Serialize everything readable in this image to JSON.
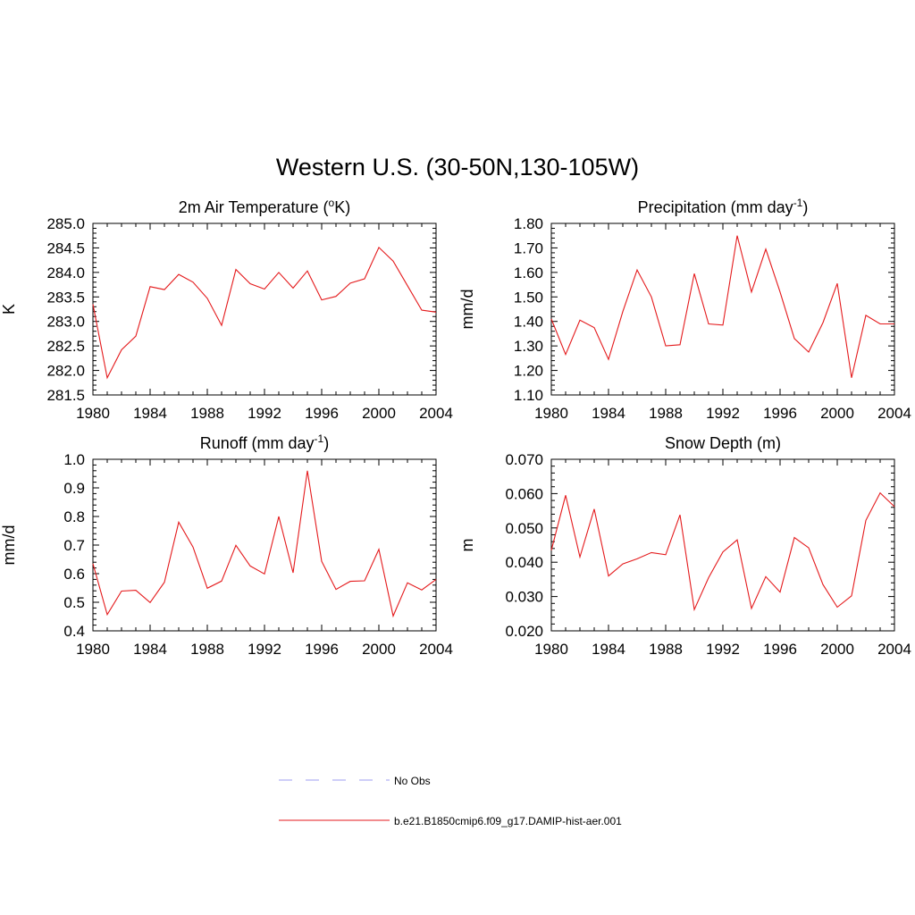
{
  "figure": {
    "title": "Western U.S. (30-50N,130-105W)"
  },
  "legend": {
    "entries": [
      {
        "label": "No Obs",
        "color": "#9c9cf0",
        "style": "dashed"
      },
      {
        "label": "b.e21.B1850cmip6.f09_g17.DAMIP-hist-aer.001",
        "color": "#e41a1c",
        "style": "solid"
      }
    ]
  },
  "chart_data": [
    {
      "type": "line",
      "title": "2m Air Temperature (",
      "title_sup": "o",
      "title_suffix": "K)",
      "ylabel": "K",
      "xlim": [
        1980,
        2004
      ],
      "ylim": [
        281.5,
        285.0
      ],
      "xticks": [
        1980,
        1984,
        1988,
        1992,
        1996,
        2000,
        2004
      ],
      "yticks": [
        "285.0",
        "284.5",
        "284.0",
        "283.5",
        "283.0",
        "282.5",
        "282.0",
        "281.5"
      ],
      "series": [
        {
          "color": "#e41a1c",
          "x": [
            1980,
            1981,
            1982,
            1983,
            1984,
            1985,
            1986,
            1987,
            1988,
            1989,
            1990,
            1991,
            1992,
            1993,
            1994,
            1995,
            1996,
            1997,
            1998,
            1999,
            2000,
            2001,
            2002,
            2003,
            2004
          ],
          "y": [
            283.35,
            281.85,
            282.42,
            282.7,
            283.71,
            283.65,
            283.96,
            283.8,
            283.47,
            282.92,
            284.06,
            283.77,
            283.66,
            284.0,
            283.68,
            284.03,
            283.44,
            283.51,
            283.78,
            283.87,
            284.51,
            284.23,
            283.73,
            283.23,
            283.19
          ]
        }
      ]
    },
    {
      "type": "line",
      "title": "Precipitation (mm day",
      "title_sup": "-1",
      "title_suffix": ")",
      "ylabel": "mm/d",
      "xlim": [
        1980,
        2004
      ],
      "ylim": [
        1.1,
        1.8
      ],
      "xticks": [
        1980,
        1984,
        1988,
        1992,
        1996,
        2000,
        2004
      ],
      "yticks": [
        "1.80",
        "1.70",
        "1.60",
        "1.50",
        "1.40",
        "1.30",
        "1.20",
        "1.10"
      ],
      "series": [
        {
          "color": "#e41a1c",
          "x": [
            1980,
            1981,
            1982,
            1983,
            1984,
            1985,
            1986,
            1987,
            1988,
            1989,
            1990,
            1991,
            1992,
            1993,
            1994,
            1995,
            1996,
            1997,
            1998,
            1999,
            2000,
            2001,
            2002,
            2003,
            2004
          ],
          "y": [
            1.41,
            1.265,
            1.405,
            1.375,
            1.245,
            1.44,
            1.61,
            1.5,
            1.3,
            1.305,
            1.595,
            1.39,
            1.385,
            1.75,
            1.52,
            1.695,
            1.52,
            1.33,
            1.275,
            1.395,
            1.555,
            1.17,
            1.425,
            1.39,
            1.39
          ]
        }
      ]
    },
    {
      "type": "line",
      "title": "Runoff (mm day",
      "title_sup": "-1",
      "title_suffix": ")",
      "ylabel": "mm/d",
      "xlim": [
        1980,
        2004
      ],
      "ylim": [
        0.4,
        1.0
      ],
      "xticks": [
        1980,
        1984,
        1988,
        1992,
        1996,
        2000,
        2004
      ],
      "yticks": [
        "1.0",
        "0.9",
        "0.8",
        "0.7",
        "0.6",
        "0.5",
        "0.4"
      ],
      "series": [
        {
          "color": "#e41a1c",
          "x": [
            1980,
            1981,
            1982,
            1983,
            1984,
            1985,
            1986,
            1987,
            1988,
            1989,
            1990,
            1991,
            1992,
            1993,
            1994,
            1995,
            1996,
            1997,
            1998,
            1999,
            2000,
            2001,
            2002,
            2003,
            2004
          ],
          "y": [
            0.635,
            0.457,
            0.539,
            0.542,
            0.499,
            0.57,
            0.78,
            0.693,
            0.549,
            0.574,
            0.699,
            0.627,
            0.599,
            0.8,
            0.603,
            0.96,
            0.643,
            0.545,
            0.573,
            0.575,
            0.685,
            0.452,
            0.568,
            0.543,
            0.58
          ]
        }
      ]
    },
    {
      "type": "line",
      "title": "Snow Depth (m)",
      "title_sup": "",
      "title_suffix": "",
      "ylabel": "m",
      "xlim": [
        1980,
        2004
      ],
      "ylim": [
        0.02,
        0.07
      ],
      "xticks": [
        1980,
        1984,
        1988,
        1992,
        1996,
        2000,
        2004
      ],
      "yticks": [
        "0.070",
        "0.060",
        "0.050",
        "0.040",
        "0.030",
        "0.020"
      ],
      "series": [
        {
          "color": "#e41a1c",
          "x": [
            1980,
            1981,
            1982,
            1983,
            1984,
            1985,
            1986,
            1987,
            1988,
            1989,
            1990,
            1991,
            1992,
            1993,
            1994,
            1995,
            1996,
            1997,
            1998,
            1999,
            2000,
            2001,
            2002,
            2003,
            2004
          ],
          "y": [
            0.0435,
            0.0595,
            0.0415,
            0.0555,
            0.036,
            0.0395,
            0.041,
            0.0428,
            0.0422,
            0.0538,
            0.0262,
            0.0355,
            0.043,
            0.0465,
            0.0265,
            0.0358,
            0.0313,
            0.0472,
            0.0442,
            0.0335,
            0.0269,
            0.0302,
            0.0522,
            0.0602,
            0.0562
          ]
        }
      ]
    }
  ]
}
